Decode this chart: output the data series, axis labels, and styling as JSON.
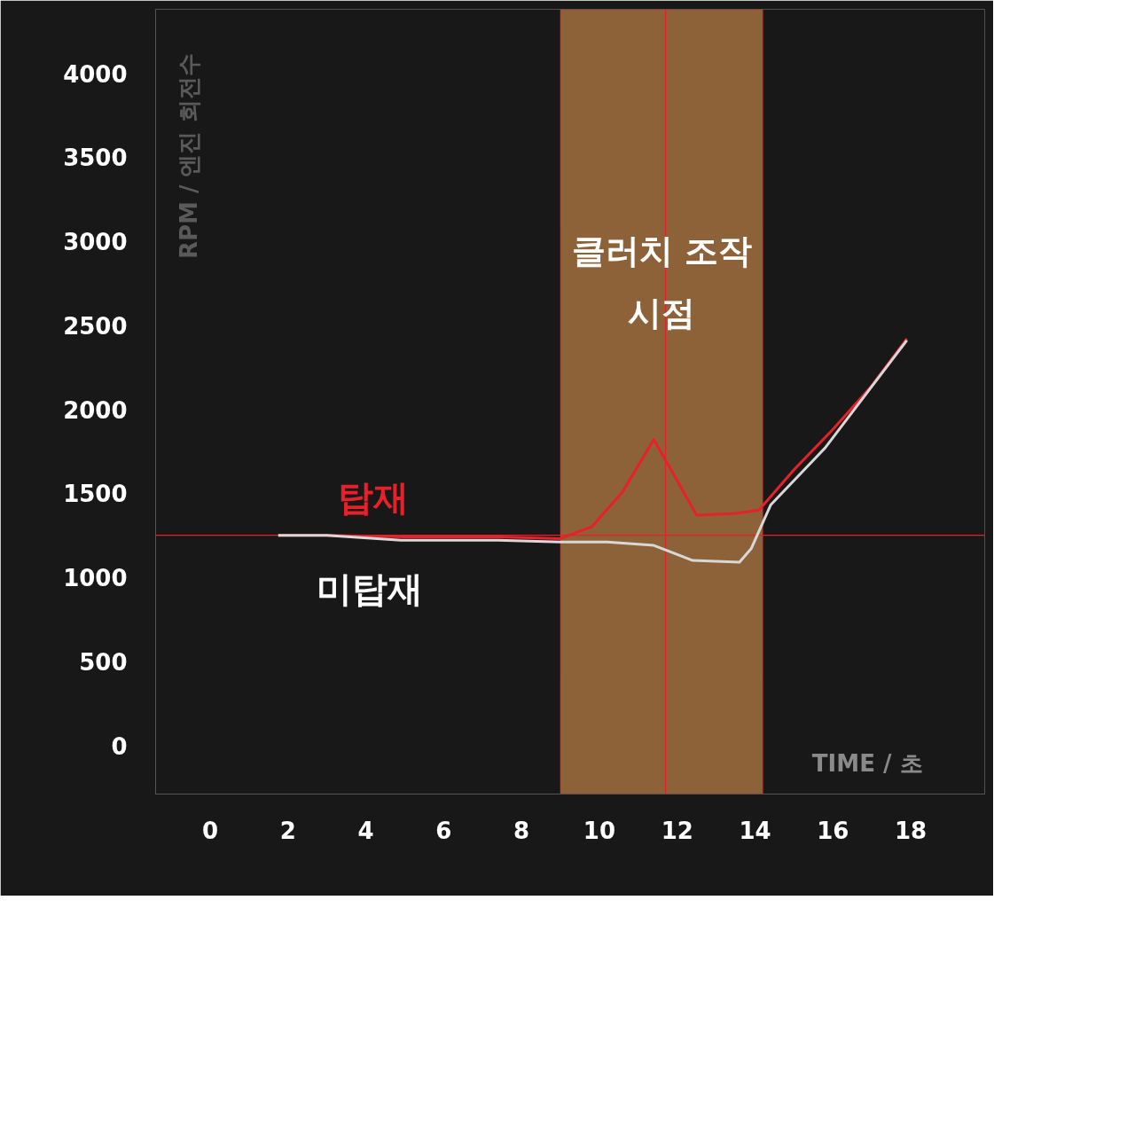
{
  "chart_data": {
    "type": "line",
    "xlabel": "TIME / 초",
    "ylabel": "RPM / 엔진 회전수",
    "xlim": [
      -1.4,
      19.9
    ],
    "ylim": [
      -290,
      4380
    ],
    "xticks": [
      0,
      2,
      4,
      6,
      8,
      10,
      12,
      14,
      16,
      18
    ],
    "yticks": [
      0,
      500,
      1000,
      1500,
      2000,
      2500,
      3000,
      3500,
      4000
    ],
    "grid": false,
    "marker": "none",
    "line_style": "solid",
    "series": [
      {
        "name": "탑재",
        "color": "#e8202a",
        "x": [
          1.75,
          3.0,
          5.0,
          7.4,
          9.0,
          9.8,
          10.6,
          11.4,
          12.5,
          13.5,
          14.1,
          15.0,
          16.0,
          17.0,
          17.9
        ],
        "values": [
          1250,
          1250,
          1240,
          1240,
          1230,
          1300,
          1510,
          1820,
          1370,
          1380,
          1400,
          1640,
          1880,
          2140,
          2420
        ]
      },
      {
        "name": "미탑재",
        "color": "#d8d8d8",
        "x": [
          1.75,
          3.0,
          4.9,
          7.4,
          9.0,
          10.2,
          11.4,
          12.4,
          13.6,
          13.9,
          14.4,
          15.8,
          17.9
        ],
        "values": [
          1250,
          1250,
          1220,
          1220,
          1210,
          1210,
          1190,
          1100,
          1090,
          1170,
          1430,
          1770,
          2410
        ]
      }
    ],
    "ref_lines": [
      {
        "axis": "y",
        "value": 1250,
        "color": "#e8202a"
      },
      {
        "axis": "x",
        "value": 11.7,
        "color": "#e8202a"
      }
    ],
    "bands": [
      {
        "axis": "x",
        "from": 9.0,
        "to": 14.2,
        "label": "클러치 조작\n시점",
        "color": "#9a6a3c"
      }
    ]
  }
}
